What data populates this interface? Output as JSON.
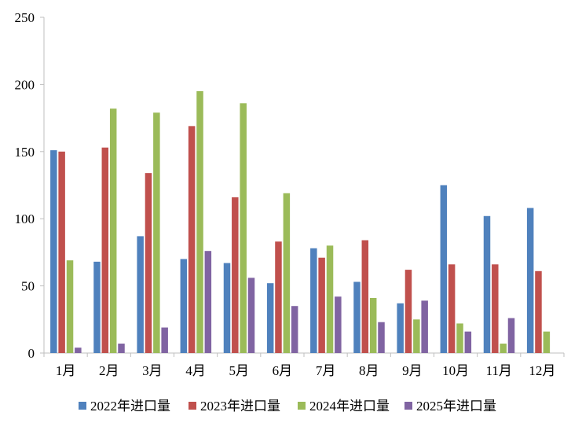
{
  "chart_data": {
    "type": "bar",
    "categories": [
      "1月",
      "2月",
      "3月",
      "4月",
      "5月",
      "6月",
      "7月",
      "8月",
      "9月",
      "10月",
      "11月",
      "12月"
    ],
    "series": [
      {
        "name": "2022年进口量",
        "color": "#4F81BD",
        "values": [
          151,
          68,
          87,
          70,
          67,
          52,
          78,
          53,
          37,
          125,
          102,
          108
        ]
      },
      {
        "name": "2023年进口量",
        "color": "#C0504D",
        "values": [
          150,
          153,
          134,
          169,
          116,
          83,
          71,
          84,
          62,
          66,
          66,
          61
        ]
      },
      {
        "name": "2024年进口量",
        "color": "#9BBB59",
        "values": [
          69,
          182,
          179,
          195,
          186,
          119,
          80,
          41,
          25,
          22,
          7,
          16
        ]
      },
      {
        "name": "2025年进口量",
        "color": "#8064A2",
        "values": [
          4,
          7,
          19,
          76,
          56,
          35,
          42,
          23,
          39,
          16,
          26,
          null
        ]
      }
    ],
    "ylim": [
      0,
      250
    ],
    "yticks": [
      0,
      50,
      100,
      150,
      200,
      250
    ],
    "grid": false,
    "legend_position": "bottom"
  }
}
